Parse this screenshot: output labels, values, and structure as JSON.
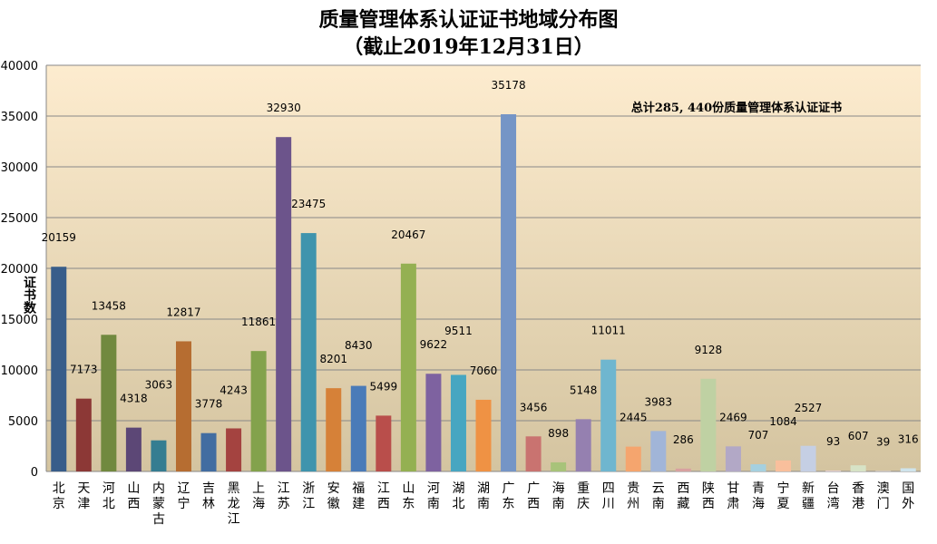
{
  "chart_data": {
    "type": "bar",
    "title": "质量管理体系认证证书地域分布图",
    "subtitle": "（截止2019年12月31日）",
    "ylabel": "证书数",
    "xlabel": "",
    "annotation": "总计285, 440份质量管理体系认证证书",
    "ylim": [
      0,
      40000
    ],
    "yticks": [
      "0",
      "5000",
      "10000",
      "15000",
      "20000",
      "25000",
      "30000",
      "35000",
      "40000"
    ],
    "grid": true,
    "legend": "none",
    "categories": [
      "北京",
      "天津",
      "河北",
      "山西",
      "内蒙古",
      "辽宁",
      "吉林",
      "黑龙江",
      "上海",
      "江苏",
      "浙江",
      "安徽",
      "福建",
      "江西",
      "山东",
      "河南",
      "湖北",
      "湖南",
      "广东",
      "广西",
      "海南",
      "重庆",
      "四川",
      "贵州",
      "云南",
      "西藏",
      "陕西",
      "甘肃",
      "青海",
      "宁夏",
      "新疆",
      "台湾",
      "香港",
      "澳门",
      "国外"
    ],
    "values": [
      20159,
      7173,
      13458,
      4318,
      3063,
      12817,
      3778,
      4243,
      11861,
      32930,
      23475,
      8201,
      8430,
      5499,
      20467,
      9622,
      9511,
      7060,
      35178,
      3456,
      898,
      5148,
      11011,
      2445,
      3983,
      286,
      9128,
      2469,
      707,
      1084,
      2527,
      93,
      607,
      39,
      316
    ],
    "colors": [
      "#385d8a",
      "#8c3836",
      "#71893f",
      "#5c4776",
      "#357d91",
      "#b66d31",
      "#426da1",
      "#a44340",
      "#83a24c",
      "#6c548b",
      "#3f94ad",
      "#d68138",
      "#4a7bb8",
      "#b94e4b",
      "#94b052",
      "#7e62a0",
      "#47a6c1",
      "#ef9244",
      "#7595c6",
      "#c97370",
      "#a8c37a",
      "#9580b0",
      "#6fb6cf",
      "#f5a56e",
      "#a1b5d8",
      "#d8a1a0",
      "#bfd1a3",
      "#b2a8c6",
      "#a5d0df",
      "#f9bf9c",
      "#c5cfe4",
      "#e5cfd0",
      "#d7e3c6",
      "#d5d1e2",
      "#cfe4ec"
    ],
    "background_gradient": [
      "#fdeccf",
      "#d4c4a0"
    ]
  }
}
